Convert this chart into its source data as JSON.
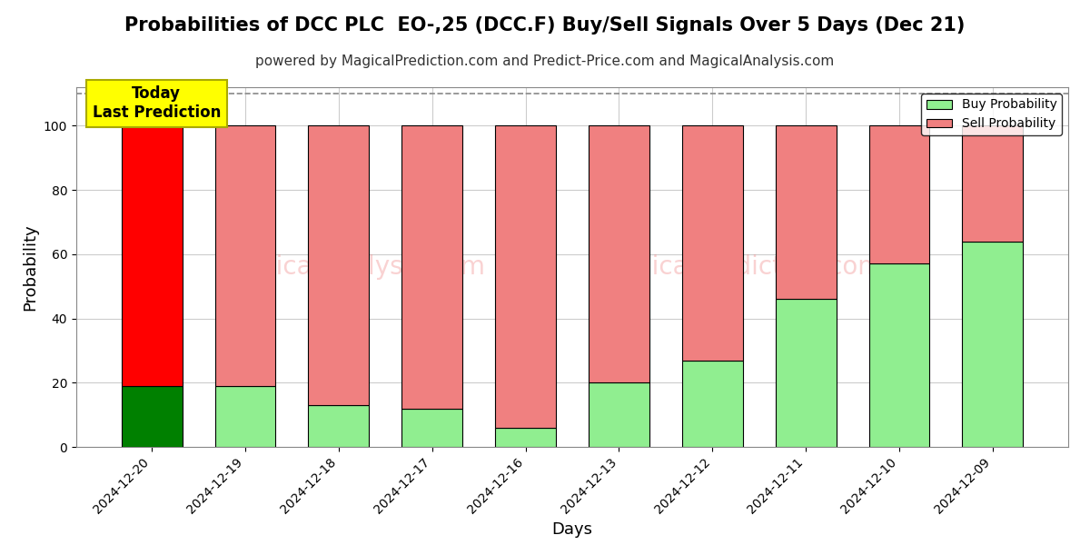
{
  "title": "Probabilities of DCC PLC  EO-,25 (DCC.F) Buy/Sell Signals Over 5 Days (Dec 21)",
  "subtitle": "powered by MagicalPrediction.com and Predict-Price.com and MagicalAnalysis.com",
  "xlabel": "Days",
  "ylabel": "Probability",
  "days": [
    "2024-12-20",
    "2024-12-19",
    "2024-12-18",
    "2024-12-17",
    "2024-12-16",
    "2024-12-13",
    "2024-12-12",
    "2024-12-11",
    "2024-12-10",
    "2024-12-09"
  ],
  "buy_prob": [
    19,
    19,
    13,
    12,
    6,
    20,
    27,
    46,
    57,
    64
  ],
  "sell_prob": [
    81,
    81,
    87,
    88,
    94,
    80,
    73,
    54,
    43,
    36
  ],
  "today_bar_buy_color": "#008000",
  "today_bar_sell_color": "#FF0000",
  "other_bar_buy_color": "#90EE90",
  "other_bar_sell_color": "#F08080",
  "bar_edge_color": "#000000",
  "bar_width": 0.65,
  "ylim": [
    0,
    112
  ],
  "dashed_line_y": 110,
  "dashed_line_color": "#888888",
  "grid_color": "#cccccc",
  "annotation_text": "Today\nLast Prediction",
  "annotation_bg": "#FFFF00",
  "annotation_edge": "#AAAA00",
  "watermark_color": "#F08080",
  "watermark_alpha": 0.35,
  "legend_buy_label": "Buy Probability",
  "legend_sell_label": "Sell Probability",
  "title_fontsize": 15,
  "subtitle_fontsize": 11,
  "axis_label_fontsize": 13,
  "tick_fontsize": 10,
  "legend_fontsize": 10,
  "annotation_fontsize": 12
}
